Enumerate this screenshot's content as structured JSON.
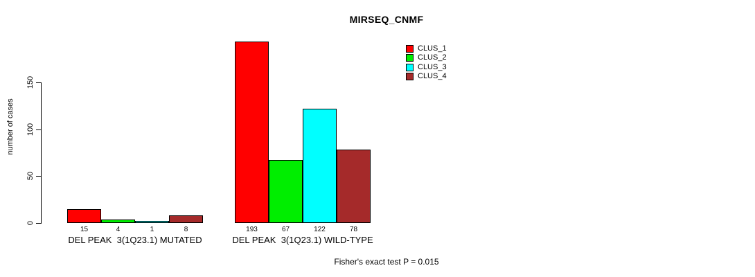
{
  "chart_data": {
    "type": "bar",
    "title": "MIRSEQ_CNMF",
    "ylabel": "number of cases",
    "xlabel": "",
    "yticks": [
      0,
      50,
      100,
      150
    ],
    "ylim": [
      0,
      200
    ],
    "grid": false,
    "legend_position": "top-right",
    "categories": [
      "DEL PEAK  3(1Q23.1) MUTATED",
      "DEL PEAK  3(1Q23.1) WILD-TYPE"
    ],
    "series": [
      {
        "name": "CLUS_1",
        "color": "#ff0000",
        "values": [
          15,
          193
        ]
      },
      {
        "name": "CLUS_2",
        "color": "#00ee00",
        "values": [
          4,
          67
        ]
      },
      {
        "name": "CLUS_3",
        "color": "#00ffff",
        "values": [
          1,
          122
        ]
      },
      {
        "name": "CLUS_4",
        "color": "#a52a2a",
        "values": [
          8,
          78
        ]
      }
    ],
    "bar_value_labels": [
      [
        "15",
        "4",
        "1",
        "8"
      ],
      [
        "193",
        "67",
        "122",
        "78"
      ]
    ],
    "footnote": "Fisher's exact test P = 0.015"
  }
}
